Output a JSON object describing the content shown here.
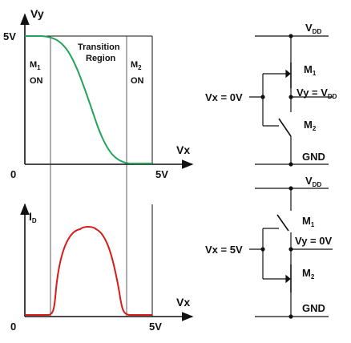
{
  "top_plot": {
    "y_axis_label": "Vy",
    "y_tick_label": "5V",
    "origin_label": "0",
    "x_axis_label": "Vx",
    "x_tick_label": "5V",
    "region_left_line1": "M",
    "region_left_sub": "1",
    "region_left_line2": "ON",
    "region_mid_line1": "Transition",
    "region_mid_line2": "Region",
    "region_right_line1": "M",
    "region_right_sub": "2",
    "region_right_line2": "ON",
    "curve_color": "#22a35a"
  },
  "bottom_plot": {
    "y_axis_label": "I",
    "y_axis_sub": "D",
    "origin_label": "0",
    "x_axis_label": "Vx",
    "x_tick_label": "5V",
    "curve_color": "#d81b1b"
  },
  "circuit_top": {
    "vdd": "V",
    "vdd_sub": "DD",
    "m1": "M",
    "m1_sub": "1",
    "m2": "M",
    "m2_sub": "2",
    "input": "Vx = 0V",
    "output": "Vy = V",
    "output_sub": "DD",
    "gnd": "GND"
  },
  "circuit_bottom": {
    "vdd": "V",
    "vdd_sub": "DD",
    "m1": "M",
    "m1_sub": "1",
    "m2": "M",
    "m2_sub": "2",
    "input": "Vx = 5V",
    "output": "Vy = 0V",
    "gnd": "GND"
  }
}
